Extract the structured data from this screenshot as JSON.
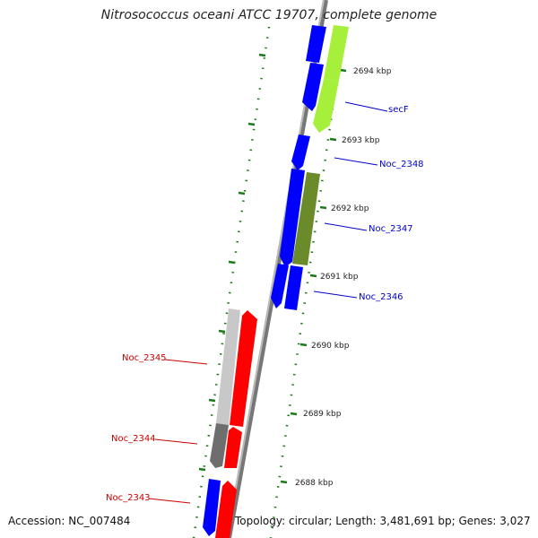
{
  "title": "Nitrosococcus oceani ATCC 19707, complete genome",
  "footer": {
    "accession": "Accession: NC_007484",
    "topology": "Topology: circular; Length: 3,481,691 bp; Genes: 3,027"
  },
  "colors": {
    "forward_gene": "#ff0000",
    "reverse_gene": "#0000ff",
    "forward_alt": "#c8c8c8",
    "forward_alt_dark": "#6e6e6e",
    "reverse_alt": "#a6f03c",
    "reverse_alt_dark": "#6b8a2a",
    "label_forward": "#cc0000",
    "label_reverse": "#0000cc",
    "tick": "#1a7a1a",
    "backbone": "#888888"
  },
  "scale_labels": [
    "2694 kbp",
    "2693 kbp",
    "2692 kbp",
    "2691 kbp",
    "2690 kbp",
    "2689 kbp",
    "2688 kbp"
  ],
  "gene_labels": {
    "reverse": [
      "secF",
      "Noc_2348",
      "Noc_2347",
      "Noc_2346"
    ],
    "forward": [
      "Noc_2345",
      "Noc_2344",
      "Noc_2343"
    ]
  }
}
